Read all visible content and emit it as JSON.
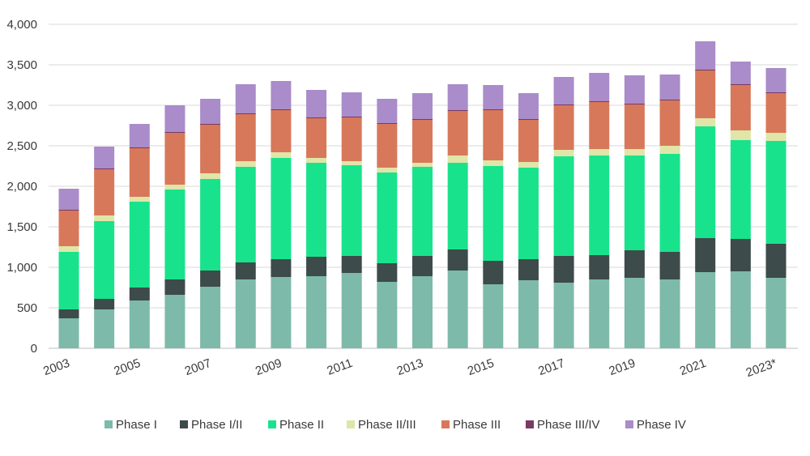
{
  "chart_data": {
    "type": "bar",
    "stacked": true,
    "title": "",
    "xlabel": "",
    "ylabel": "",
    "ylim": [
      0,
      4000
    ],
    "yticks": [
      0,
      500,
      1000,
      1500,
      2000,
      2500,
      3000,
      3500,
      4000
    ],
    "ytick_labels": [
      "0",
      "500",
      "1,000",
      "1,500",
      "2,000",
      "2,500",
      "3,000",
      "3,500",
      "4,000"
    ],
    "categories": [
      "2003",
      "2004",
      "2005",
      "2006",
      "2007",
      "2008",
      "2009",
      "2010",
      "2011",
      "2012",
      "2013",
      "2014",
      "2015",
      "2016",
      "2017",
      "2018",
      "2019",
      "2020",
      "2021",
      "2022",
      "2023*"
    ],
    "xtick_labels": [
      "2003",
      "",
      "2005",
      "",
      "2007",
      "",
      "2009",
      "",
      "2011",
      "",
      "2013",
      "",
      "2015",
      "",
      "2017",
      "",
      "2019",
      "",
      "2021",
      "",
      "2023*"
    ],
    "grid": true,
    "legend_position": "bottom",
    "series": [
      {
        "name": "Phase I",
        "color": "#7dbaa9",
        "values": [
          370,
          480,
          590,
          660,
          760,
          850,
          880,
          890,
          930,
          820,
          890,
          960,
          790,
          840,
          810,
          850,
          870,
          850,
          940,
          950,
          870
        ]
      },
      {
        "name": "Phase I/II",
        "color": "#3d4b4a",
        "values": [
          110,
          130,
          160,
          190,
          200,
          210,
          220,
          240,
          210,
          230,
          250,
          260,
          290,
          260,
          330,
          300,
          340,
          340,
          420,
          400,
          420
        ]
      },
      {
        "name": "Phase II",
        "color": "#18e38c",
        "values": [
          710,
          960,
          1060,
          1110,
          1130,
          1180,
          1250,
          1160,
          1120,
          1120,
          1100,
          1070,
          1170,
          1130,
          1230,
          1230,
          1170,
          1210,
          1380,
          1220,
          1270
        ]
      },
      {
        "name": "Phase II/III",
        "color": "#dfe6a8",
        "values": [
          70,
          70,
          60,
          60,
          70,
          70,
          70,
          60,
          50,
          60,
          50,
          90,
          70,
          70,
          80,
          80,
          80,
          100,
          100,
          120,
          100
        ]
      },
      {
        "name": "Phase III",
        "color": "#d8785a",
        "values": [
          440,
          570,
          600,
          640,
          600,
          580,
          520,
          490,
          540,
          540,
          530,
          550,
          620,
          520,
          550,
          580,
          550,
          560,
          590,
          560,
          490
        ]
      },
      {
        "name": "Phase III/IV",
        "color": "#7a3a63",
        "values": [
          10,
          10,
          10,
          10,
          10,
          10,
          10,
          10,
          10,
          10,
          10,
          10,
          10,
          10,
          10,
          10,
          10,
          10,
          10,
          10,
          10
        ]
      },
      {
        "name": "Phase IV",
        "color": "#a98cc9",
        "values": [
          260,
          270,
          290,
          330,
          310,
          360,
          350,
          340,
          300,
          300,
          320,
          320,
          300,
          320,
          340,
          350,
          350,
          310,
          350,
          280,
          300
        ]
      }
    ]
  }
}
